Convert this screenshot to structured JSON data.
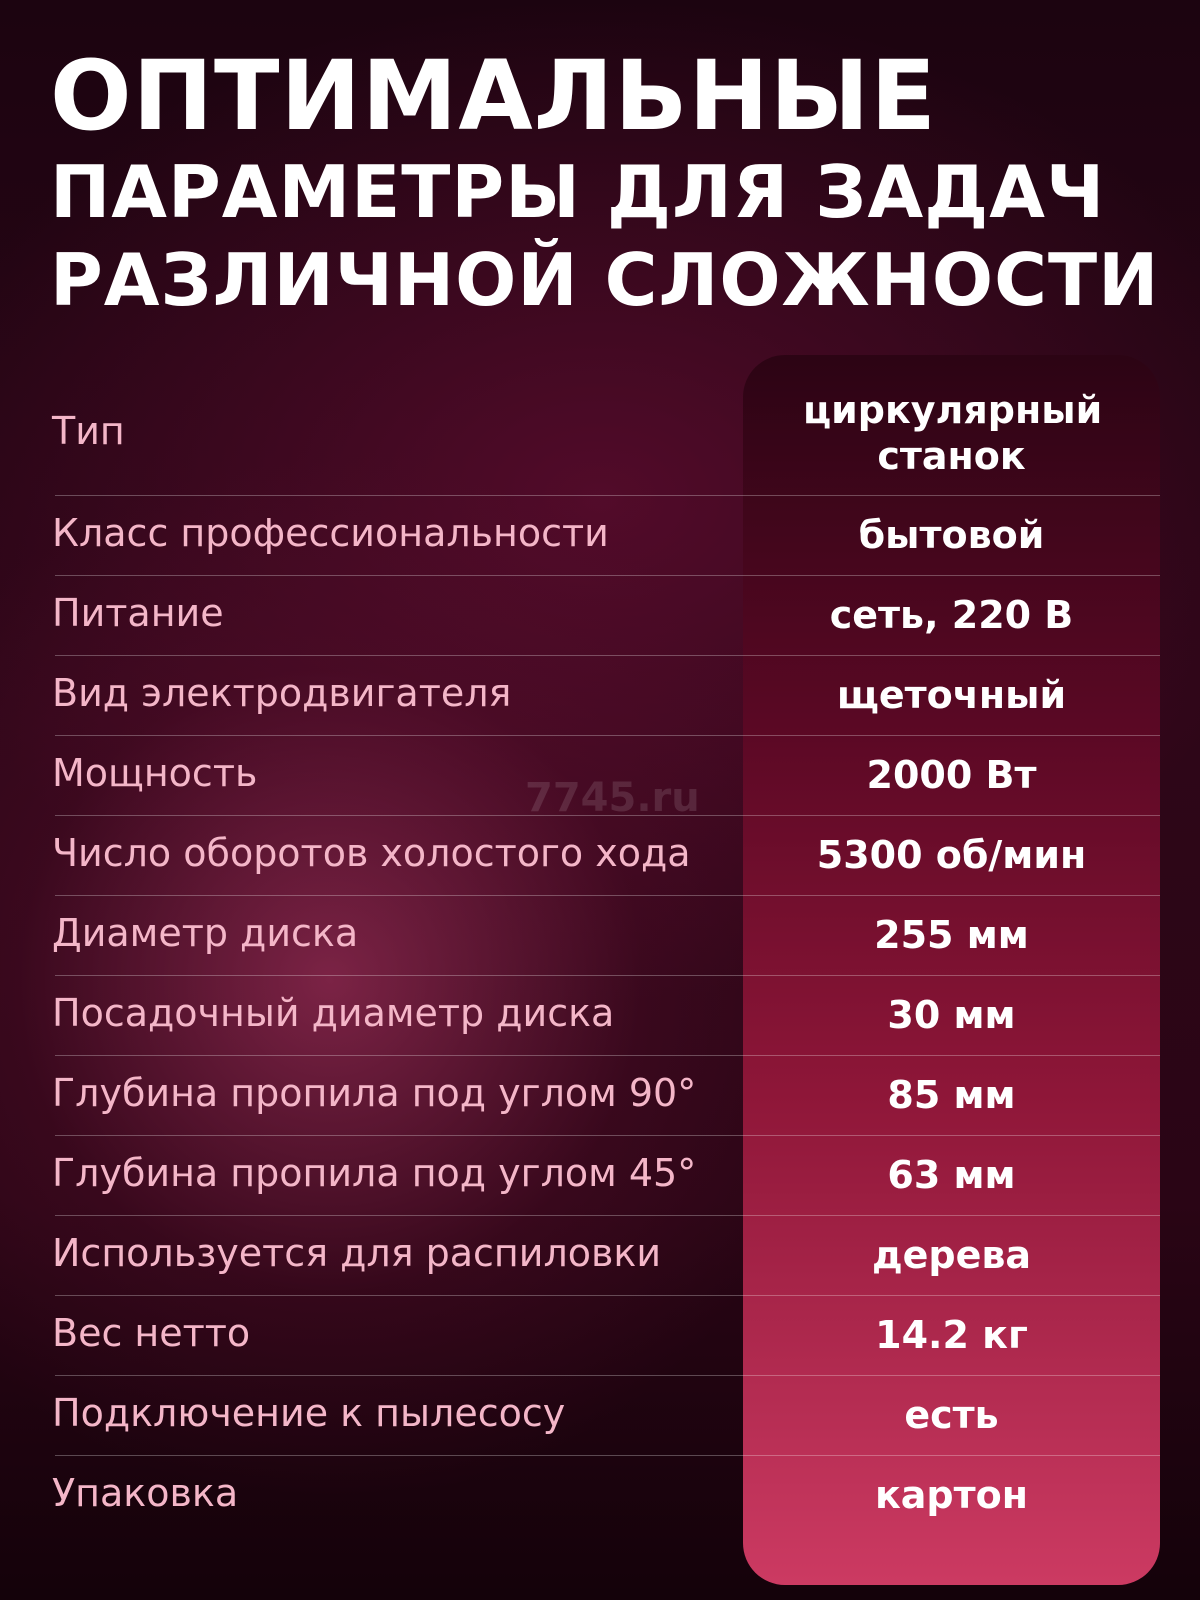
{
  "header": {
    "title_lines": [
      "ОПТИМАЛЬНЫЕ",
      "ПАРАМЕТРЫ ДЛЯ ЗАДАЧ",
      "РАЗЛИЧНОЙ СЛОЖНОСТИ"
    ]
  },
  "watermark": "7745.ru",
  "table": {
    "rows": [
      [
        "Тип",
        "циркулярный станок"
      ],
      [
        "Класс профессиональности",
        "бытовой"
      ],
      [
        "Питание",
        "сеть, 220 В"
      ],
      [
        "Вид электродвигателя",
        "щеточный"
      ],
      [
        "Мощность",
        "2000 Вт"
      ],
      [
        "Число оборотов холостого хода",
        "5300 об/мин"
      ],
      [
        "Диаметр диска",
        "255 мм"
      ],
      [
        "Посадочный диаметр диска",
        "30 мм"
      ],
      [
        "Глубина пропила под углом 90°",
        "85 мм"
      ],
      [
        "Глубина пропила под углом 45°",
        "63 мм"
      ],
      [
        "Используется для распиловки",
        "дерева"
      ],
      [
        "Вес нетто",
        "14.2 кг"
      ],
      [
        "Подключение к пылесосу",
        "есть"
      ],
      [
        "Упаковка",
        "картон"
      ]
    ]
  }
}
